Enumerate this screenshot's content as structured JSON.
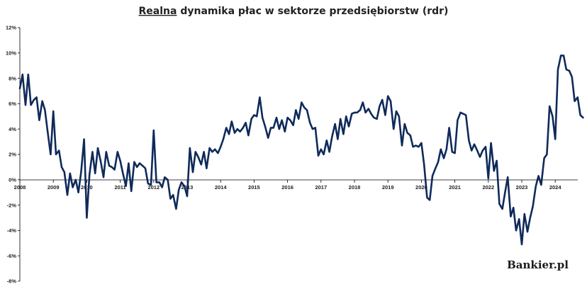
{
  "chart_data": {
    "type": "line",
    "title_prefix": "Realna",
    "title_rest": " dynamika płac w sektorze przedsiębiorstw (rdr)",
    "xlabel": "",
    "ylabel": "",
    "ylim": [
      -8,
      12
    ],
    "xlim": [
      2008,
      2024.95
    ],
    "y_ticks": [
      12,
      10,
      8,
      6,
      4,
      2,
      0,
      -2,
      -4,
      -6,
      -8
    ],
    "y_tick_labels": [
      "12%",
      "10%",
      "8%",
      "6%",
      "4%",
      "2%",
      "0%",
      "-2%",
      "-4%",
      "-6%",
      "-8%"
    ],
    "x_tick_labels": [
      "2008",
      "2009",
      "2010",
      "2011",
      "2012",
      "2013",
      "2014",
      "2015",
      "2016",
      "2017",
      "2018",
      "2019",
      "2020",
      "2021",
      "2022",
      "2023",
      "2024"
    ],
    "grid": false,
    "legend": "none",
    "line_color": "#0f2a5a",
    "watermark": "Bankier.pl",
    "series": [
      {
        "points": [
          [
            2008.0,
            7.2
          ],
          [
            2008.08,
            8.3
          ],
          [
            2008.17,
            5.9
          ],
          [
            2008.25,
            8.3
          ],
          [
            2008.33,
            5.9
          ],
          [
            2008.42,
            6.3
          ],
          [
            2008.5,
            6.5
          ],
          [
            2008.58,
            4.7
          ],
          [
            2008.67,
            6.2
          ],
          [
            2008.75,
            5.5
          ],
          [
            2008.83,
            3.8
          ],
          [
            2008.92,
            2.0
          ],
          [
            2009.0,
            5.4
          ],
          [
            2009.08,
            2.0
          ],
          [
            2009.17,
            2.3
          ],
          [
            2009.25,
            1.0
          ],
          [
            2009.33,
            0.6
          ],
          [
            2009.42,
            -1.2
          ],
          [
            2009.5,
            0.5
          ],
          [
            2009.58,
            -0.6
          ],
          [
            2009.67,
            0.0
          ],
          [
            2009.75,
            -1.0
          ],
          [
            2009.83,
            0.6
          ],
          [
            2009.92,
            3.2
          ],
          [
            2010.0,
            -3.0
          ],
          [
            2010.08,
            0.4
          ],
          [
            2010.17,
            2.2
          ],
          [
            2010.25,
            0.5
          ],
          [
            2010.33,
            2.5
          ],
          [
            2010.42,
            1.4
          ],
          [
            2010.5,
            0.2
          ],
          [
            2010.58,
            2.2
          ],
          [
            2010.67,
            1.1
          ],
          [
            2010.75,
            1.0
          ],
          [
            2010.83,
            0.8
          ],
          [
            2010.92,
            2.2
          ],
          [
            2011.0,
            1.5
          ],
          [
            2011.08,
            0.5
          ],
          [
            2011.17,
            -0.5
          ],
          [
            2011.25,
            1.3
          ],
          [
            2011.33,
            -0.9
          ],
          [
            2011.42,
            1.4
          ],
          [
            2011.5,
            1.0
          ],
          [
            2011.58,
            1.3
          ],
          [
            2011.67,
            1.1
          ],
          [
            2011.75,
            0.9
          ],
          [
            2011.83,
            -0.3
          ],
          [
            2011.92,
            -0.4
          ],
          [
            2012.0,
            3.9
          ],
          [
            2012.08,
            -0.2
          ],
          [
            2012.17,
            -0.2
          ],
          [
            2012.25,
            -0.6
          ],
          [
            2012.33,
            0.2
          ],
          [
            2012.42,
            0.0
          ],
          [
            2012.5,
            -1.5
          ],
          [
            2012.58,
            -1.2
          ],
          [
            2012.67,
            -2.3
          ],
          [
            2012.75,
            -0.8
          ],
          [
            2012.83,
            -0.2
          ],
          [
            2012.92,
            -0.5
          ],
          [
            2013.0,
            -1.3
          ],
          [
            2013.08,
            2.5
          ],
          [
            2013.17,
            0.6
          ],
          [
            2013.25,
            2.2
          ],
          [
            2013.33,
            1.8
          ],
          [
            2013.42,
            1.2
          ],
          [
            2013.5,
            2.2
          ],
          [
            2013.58,
            0.9
          ],
          [
            2013.67,
            2.5
          ],
          [
            2013.75,
            2.2
          ],
          [
            2013.83,
            2.4
          ],
          [
            2013.92,
            2.1
          ],
          [
            2014.0,
            2.6
          ],
          [
            2014.08,
            3.2
          ],
          [
            2014.17,
            4.1
          ],
          [
            2014.25,
            3.6
          ],
          [
            2014.33,
            4.6
          ],
          [
            2014.42,
            3.7
          ],
          [
            2014.5,
            4.0
          ],
          [
            2014.58,
            3.8
          ],
          [
            2014.67,
            4.1
          ],
          [
            2014.75,
            4.5
          ],
          [
            2014.83,
            3.5
          ],
          [
            2014.92,
            4.8
          ],
          [
            2015.0,
            5.1
          ],
          [
            2015.08,
            5.0
          ],
          [
            2015.17,
            6.5
          ],
          [
            2015.25,
            4.9
          ],
          [
            2015.33,
            4.2
          ],
          [
            2015.42,
            3.3
          ],
          [
            2015.5,
            4.1
          ],
          [
            2015.58,
            4.1
          ],
          [
            2015.67,
            4.9
          ],
          [
            2015.75,
            4.0
          ],
          [
            2015.83,
            4.7
          ],
          [
            2015.92,
            3.8
          ],
          [
            2016.0,
            4.9
          ],
          [
            2016.08,
            4.7
          ],
          [
            2016.17,
            4.3
          ],
          [
            2016.25,
            5.5
          ],
          [
            2016.33,
            4.8
          ],
          [
            2016.42,
            6.1
          ],
          [
            2016.5,
            5.7
          ],
          [
            2016.58,
            5.5
          ],
          [
            2016.67,
            4.5
          ],
          [
            2016.75,
            4.0
          ],
          [
            2016.83,
            4.1
          ],
          [
            2016.92,
            1.9
          ],
          [
            2017.0,
            2.4
          ],
          [
            2017.08,
            2.0
          ],
          [
            2017.17,
            3.1
          ],
          [
            2017.25,
            2.2
          ],
          [
            2017.33,
            3.4
          ],
          [
            2017.42,
            4.4
          ],
          [
            2017.5,
            3.2
          ],
          [
            2017.58,
            4.8
          ],
          [
            2017.67,
            3.6
          ],
          [
            2017.75,
            5.0
          ],
          [
            2017.83,
            4.2
          ],
          [
            2017.92,
            5.2
          ],
          [
            2018.0,
            5.3
          ],
          [
            2018.08,
            5.3
          ],
          [
            2018.17,
            5.5
          ],
          [
            2018.25,
            6.1
          ],
          [
            2018.33,
            5.3
          ],
          [
            2018.42,
            5.6
          ],
          [
            2018.5,
            5.2
          ],
          [
            2018.58,
            4.9
          ],
          [
            2018.67,
            4.8
          ],
          [
            2018.75,
            5.8
          ],
          [
            2018.83,
            6.3
          ],
          [
            2018.92,
            5.1
          ],
          [
            2019.0,
            6.6
          ],
          [
            2019.08,
            6.2
          ],
          [
            2019.17,
            4.0
          ],
          [
            2019.25,
            5.4
          ],
          [
            2019.33,
            5.0
          ],
          [
            2019.42,
            2.7
          ],
          [
            2019.5,
            4.4
          ],
          [
            2019.58,
            3.7
          ],
          [
            2019.67,
            3.5
          ],
          [
            2019.75,
            2.6
          ],
          [
            2019.83,
            2.7
          ],
          [
            2019.92,
            2.6
          ],
          [
            2020.0,
            2.9
          ],
          [
            2020.08,
            1.2
          ],
          [
            2020.17,
            -1.4
          ],
          [
            2020.25,
            -1.6
          ],
          [
            2020.33,
            0.3
          ],
          [
            2020.42,
            0.9
          ],
          [
            2020.5,
            1.4
          ],
          [
            2020.58,
            2.4
          ],
          [
            2020.67,
            1.7
          ],
          [
            2020.75,
            2.4
          ],
          [
            2020.83,
            4.1
          ],
          [
            2020.92,
            2.2
          ],
          [
            2021.0,
            2.1
          ],
          [
            2021.08,
            4.7
          ],
          [
            2021.17,
            5.3
          ],
          [
            2021.25,
            5.2
          ],
          [
            2021.33,
            5.1
          ],
          [
            2021.42,
            3.1
          ],
          [
            2021.5,
            2.3
          ],
          [
            2021.58,
            2.8
          ],
          [
            2021.67,
            2.3
          ],
          [
            2021.75,
            1.8
          ],
          [
            2021.83,
            2.3
          ],
          [
            2021.92,
            2.6
          ],
          [
            2022.0,
            0.1
          ],
          [
            2022.08,
            2.9
          ],
          [
            2022.17,
            0.7
          ],
          [
            2022.25,
            1.5
          ],
          [
            2022.33,
            -1.9
          ],
          [
            2022.42,
            -2.3
          ],
          [
            2022.5,
            -1.0
          ],
          [
            2022.58,
            0.2
          ],
          [
            2022.67,
            -2.9
          ],
          [
            2022.75,
            -2.2
          ],
          [
            2022.83,
            -4.0
          ],
          [
            2022.92,
            -3.1
          ],
          [
            2023.0,
            -5.1
          ],
          [
            2023.08,
            -2.7
          ],
          [
            2023.17,
            -4.1
          ],
          [
            2023.25,
            -3.0
          ],
          [
            2023.33,
            -2.1
          ],
          [
            2023.42,
            -0.5
          ],
          [
            2023.5,
            0.3
          ],
          [
            2023.58,
            -0.4
          ],
          [
            2023.67,
            1.7
          ],
          [
            2023.75,
            2.0
          ],
          [
            2023.83,
            5.8
          ],
          [
            2023.92,
            5.0
          ],
          [
            2024.0,
            3.2
          ],
          [
            2024.08,
            8.7
          ],
          [
            2024.17,
            9.8
          ],
          [
            2024.25,
            9.8
          ],
          [
            2024.33,
            8.7
          ],
          [
            2024.42,
            8.6
          ],
          [
            2024.5,
            8.1
          ],
          [
            2024.58,
            6.2
          ],
          [
            2024.67,
            6.5
          ],
          [
            2024.75,
            5.1
          ],
          [
            2024.83,
            4.9
          ]
        ]
      }
    ]
  }
}
